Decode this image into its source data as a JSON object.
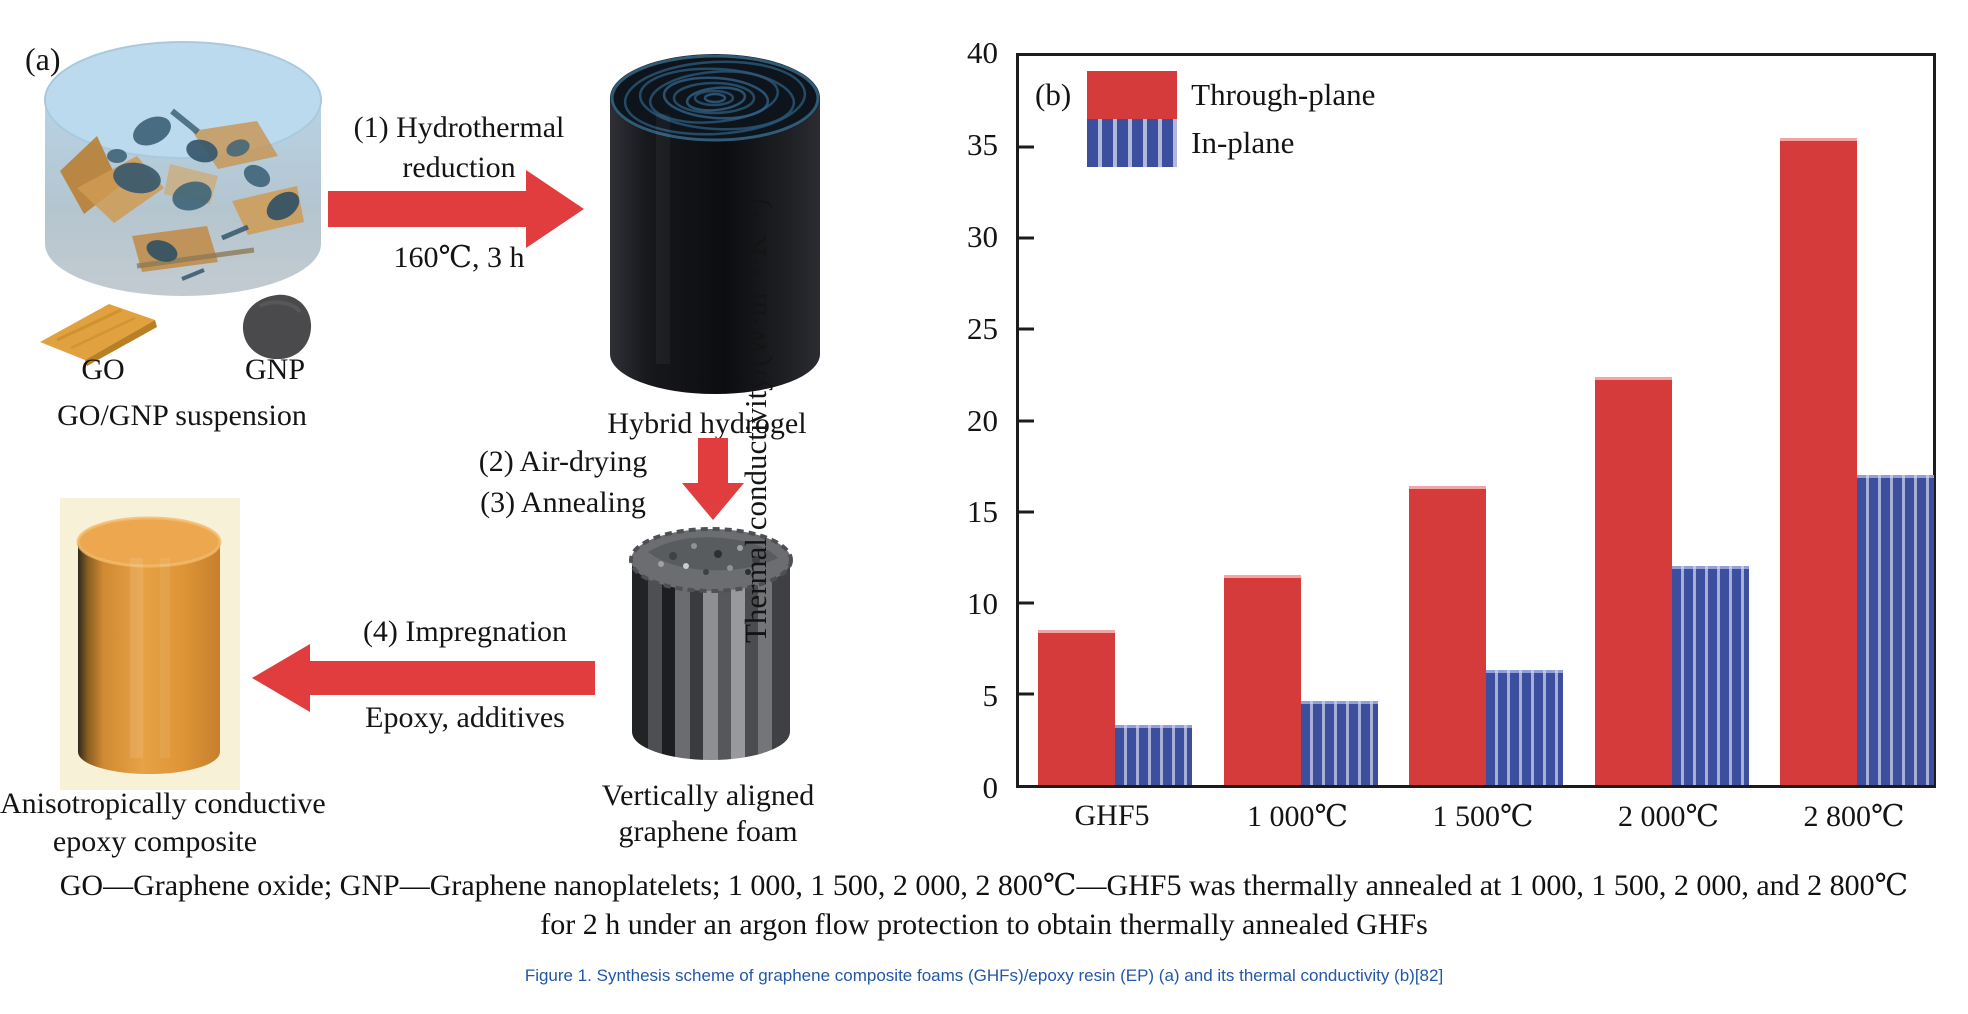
{
  "panel_a": {
    "label": "(a)",
    "go_label": "GO",
    "gnp_label": "GNP",
    "suspension_label": "GO/GNP suspension",
    "step1_line1": "(1) Hydrothermal",
    "step1_line2": "reduction",
    "step1_condition": "160℃, 3 h",
    "hydrogel_label": "Hybrid hydrogel",
    "step2": "(2) Air-drying",
    "step3": "(3) Annealing",
    "step4": "(4) Impregnation",
    "step4_condition": "Epoxy, additives",
    "foam_label_line1": "Vertically aligned",
    "foam_label_line2": "graphene foam",
    "composite_label_line1": "Anisotropically conductive",
    "composite_label_line2": "epoxy composite"
  },
  "chart_data": {
    "type": "bar",
    "panel_label": "(b)",
    "title": "",
    "xlabel": "",
    "ylabel": "Thermal conductivity/(W·m⁻¹·K⁻¹)",
    "ylim": [
      0,
      40
    ],
    "ytick_step": 5,
    "grid": false,
    "legend_position": "top-left",
    "categories": [
      "GHF5",
      "1 000℃",
      "1 500℃",
      "2 000℃",
      "2 800℃"
    ],
    "series": [
      {
        "name": "Through-plane",
        "color": "#d63b3b",
        "pattern": "solid",
        "values": [
          8.5,
          11.5,
          16.4,
          22.4,
          35.5
        ]
      },
      {
        "name": "In-plane",
        "color": "#3c4f9f",
        "pattern": "vertical-stripes",
        "values": [
          3.3,
          4.6,
          6.3,
          12.0,
          17.0
        ]
      }
    ]
  },
  "caption": {
    "line1": "GO—Graphene oxide; GNP—Graphene nanoplatelets; 1 000, 1 500, 2 000, 2 800℃—GHF5 was thermally annealed at 1 000, 1 500, 2 000, and 2 800℃",
    "line2": "for 2 h under an argon flow protection to obtain thermally annealed GHFs",
    "figure": "Figure 1. Synthesis scheme of graphene composite foams (GHFs)/epoxy resin (EP) (a) and its thermal conductivity (b)[82]"
  },
  "colors": {
    "through_plane": "#d63b3b",
    "in_plane": "#3c4f9f",
    "stripe_highlight": "#9aa7d6",
    "arrow_red": "#e13c3e",
    "figure_caption_blue": "#2257a8",
    "go_orange": "#e0a13e",
    "gnp_gray": "#4a4a4c",
    "suspension_blue": "#b7d6ea",
    "epoxy_orange": "#e09b44"
  }
}
